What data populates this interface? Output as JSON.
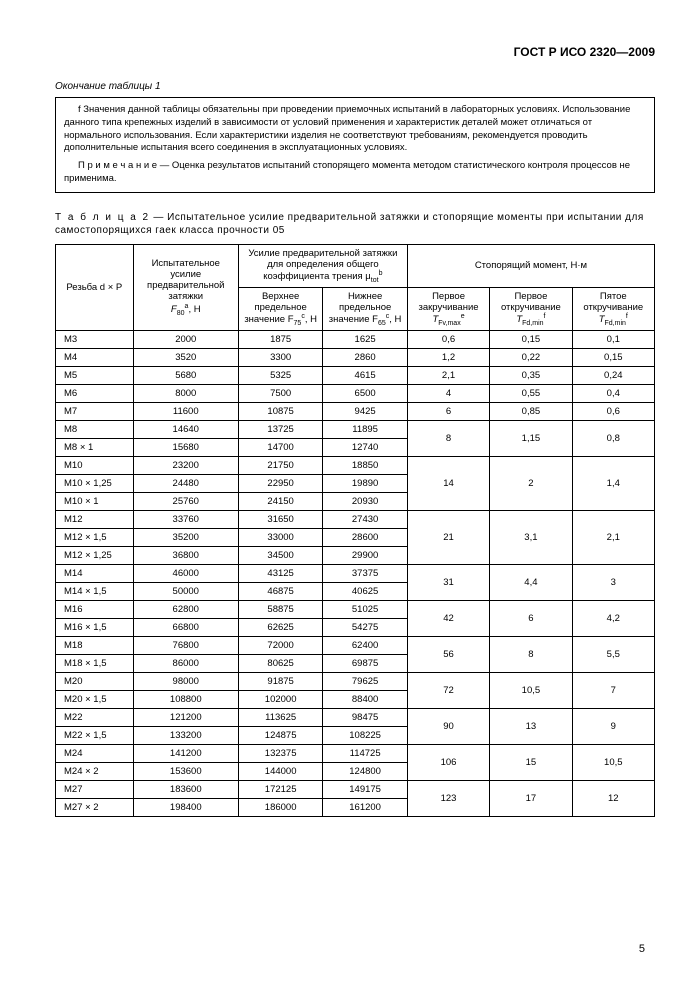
{
  "doc_header": "ГОСТ Р ИСО 2320—2009",
  "table_end_caption": "Окончание таблицы 1",
  "note_f": "f   Значения данной таблицы обязательны при проведении приемочных испытаний в лабораторных условиях. Использование данного типа крепежных изделий в зависимости от условий применения и характеристик деталей может отличаться от нормального использования. Если характеристики изделия не соответствуют требованиям, рекомендуется проводить дополнительные испытания всего соединения в эксплуатационных условиях.",
  "note_p": "П р и м е ч а н и е — Оценка результатов испытаний стопорящего момента методом статистического контроля процессов не применима.",
  "table2_label": "Т а б л и ц а   2",
  "table2_title": " — Испытательное усилие предварительной затяжки и стопорящие моменты при испытании для самостопорящихся гаек класса прочности 05",
  "headers": {
    "thread": "Резьба d × P",
    "test_force_top": "Испытательное усилие предварительной затяжки",
    "test_force_sym": "F",
    "clamp_force": "Усилие предварительной затяжки для определения общего коэффициента трения μ",
    "upper": "Верхнее предельное значение F",
    "lower": "Нижнее предельное значение F",
    "torque": "Стопорящий момент, Н·м",
    "first_on": "Первое закручивание",
    "first_off": "Первое откручивание",
    "fifth_off": "Пятое откручивание"
  },
  "sym": {
    "f80": "80",
    "fa": "a",
    "mu": "tot",
    "mub": "b",
    "f75": "75",
    "f75c": "c",
    "f65": "65",
    "f65c": "c",
    "tfv": "Fv,max",
    "tfve": "e",
    "tfd1": "Fd,min",
    "tfd1f": "f",
    "tfd5": "Fd,min",
    "tfd5f": "f"
  },
  "rows": [
    {
      "thread": "M3",
      "f80": "2000",
      "f75": "1875",
      "f65": "1625",
      "t1": "0,6",
      "t2": "0,15",
      "t3": "0,1",
      "span": 1
    },
    {
      "thread": "M4",
      "f80": "3520",
      "f75": "3300",
      "f65": "2860",
      "t1": "1,2",
      "t2": "0,22",
      "t3": "0,15",
      "span": 1
    },
    {
      "thread": "M5",
      "f80": "5680",
      "f75": "5325",
      "f65": "4615",
      "t1": "2,1",
      "t2": "0,35",
      "t3": "0,24",
      "span": 1
    },
    {
      "thread": "M6",
      "f80": "8000",
      "f75": "7500",
      "f65": "6500",
      "t1": "4",
      "t2": "0,55",
      "t3": "0,4",
      "span": 1
    },
    {
      "thread": "M7",
      "f80": "11600",
      "f75": "10875",
      "f65": "9425",
      "t1": "6",
      "t2": "0,85",
      "t3": "0,6",
      "span": 1
    },
    {
      "thread": "M8",
      "f80": "14640",
      "f75": "13725",
      "f65": "11895",
      "t1": "8",
      "t2": "1,15",
      "t3": "0,8",
      "span": 2
    },
    {
      "thread": "M8 × 1",
      "f80": "15680",
      "f75": "14700",
      "f65": "12740"
    },
    {
      "thread": "M10",
      "f80": "23200",
      "f75": "21750",
      "f65": "18850",
      "t1": "14",
      "t2": "2",
      "t3": "1,4",
      "span": 3
    },
    {
      "thread": "M10 × 1,25",
      "f80": "24480",
      "f75": "22950",
      "f65": "19890"
    },
    {
      "thread": "M10 × 1",
      "f80": "25760",
      "f75": "24150",
      "f65": "20930"
    },
    {
      "thread": "M12",
      "f80": "33760",
      "f75": "31650",
      "f65": "27430",
      "t1": "21",
      "t2": "3,1",
      "t3": "2,1",
      "span": 3
    },
    {
      "thread": "M12 × 1,5",
      "f80": "35200",
      "f75": "33000",
      "f65": "28600"
    },
    {
      "thread": "M12 × 1,25",
      "f80": "36800",
      "f75": "34500",
      "f65": "29900"
    },
    {
      "thread": "M14",
      "f80": "46000",
      "f75": "43125",
      "f65": "37375",
      "t1": "31",
      "t2": "4,4",
      "t3": "3",
      "span": 2
    },
    {
      "thread": "M14 × 1,5",
      "f80": "50000",
      "f75": "46875",
      "f65": "40625"
    },
    {
      "thread": "M16",
      "f80": "62800",
      "f75": "58875",
      "f65": "51025",
      "t1": "42",
      "t2": "6",
      "t3": "4,2",
      "span": 2
    },
    {
      "thread": "M16 × 1,5",
      "f80": "66800",
      "f75": "62625",
      "f65": "54275"
    },
    {
      "thread": "M18",
      "f80": "76800",
      "f75": "72000",
      "f65": "62400",
      "t1": "56",
      "t2": "8",
      "t3": "5,5",
      "span": 2
    },
    {
      "thread": "M18 × 1,5",
      "f80": "86000",
      "f75": "80625",
      "f65": "69875"
    },
    {
      "thread": "M20",
      "f80": "98000",
      "f75": "91875",
      "f65": "79625",
      "t1": "72",
      "t2": "10,5",
      "t3": "7",
      "span": 2
    },
    {
      "thread": "M20 × 1,5",
      "f80": "108800",
      "f75": "102000",
      "f65": "88400"
    },
    {
      "thread": "M22",
      "f80": "121200",
      "f75": "113625",
      "f65": "98475",
      "t1": "90",
      "t2": "13",
      "t3": "9",
      "span": 2
    },
    {
      "thread": "M22 × 1,5",
      "f80": "133200",
      "f75": "124875",
      "f65": "108225"
    },
    {
      "thread": "M24",
      "f80": "141200",
      "f75": "132375",
      "f65": "114725",
      "t1": "106",
      "t2": "15",
      "t3": "10,5",
      "span": 2
    },
    {
      "thread": "M24 × 2",
      "f80": "153600",
      "f75": "144000",
      "f65": "124800"
    },
    {
      "thread": "M27",
      "f80": "183600",
      "f75": "172125",
      "f65": "149175",
      "t1": "123",
      "t2": "17",
      "t3": "12",
      "span": 2
    },
    {
      "thread": "M27 × 2",
      "f80": "198400",
      "f75": "186000",
      "f65": "161200"
    }
  ],
  "page_number": "5",
  "style": {
    "page_bg": "#ffffff",
    "text_color": "#000000",
    "border_color": "#000000",
    "font_family": "Arial, sans-serif",
    "body_fontsize": 10,
    "header_fontsize": 12,
    "table_fontsize": 9.5
  }
}
